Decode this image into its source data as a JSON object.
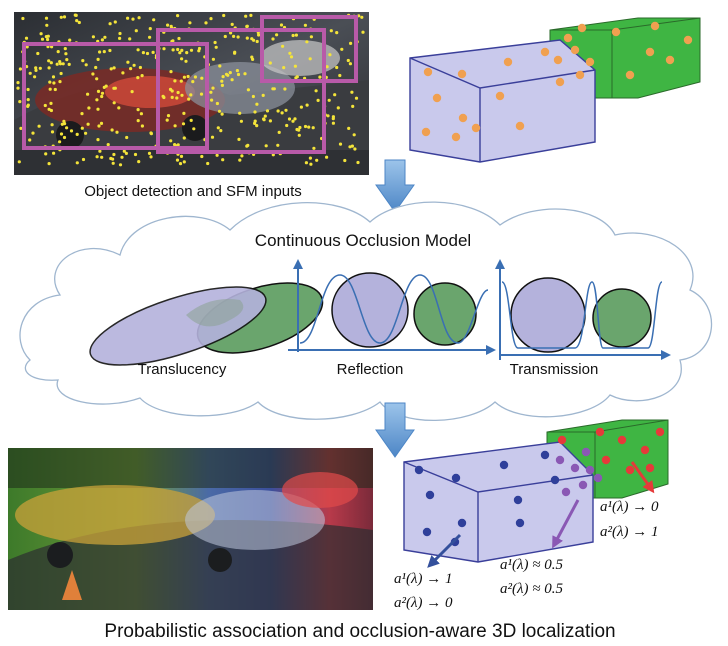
{
  "captions": {
    "top_left": "Object detection and SFM inputs",
    "model_title": "Continuous Occlusion Model",
    "translucency": "Translucency",
    "reflection": "Reflection",
    "transmission": "Transmission",
    "bottom": "Probabilistic association and occlusion-aware 3D localization"
  },
  "equations": {
    "red": [
      "a¹(λ) → 0",
      "a²(λ) → 1"
    ],
    "purple": [
      "a¹(λ) ≈ 0.5",
      "a²(λ) ≈ 0.5"
    ],
    "blue": [
      "a¹(λ) → 1",
      "a²(λ) → 0"
    ]
  },
  "colors": {
    "box_blue_fill": "#c9c9ec",
    "box_green_fill": "#3fb543",
    "ellipse_blue": "#b4b2dc",
    "ellipse_green": "#6aa56d",
    "curve_blue": "#3a6fb3",
    "arrow_blue": "#5b92cc",
    "point_orange": "#f0a050",
    "point_blue": "#2f3f9a",
    "point_purple": "#8a58b4",
    "point_red": "#e53a3a",
    "bbox_magenta": "#b85aa8",
    "feature_yellow": "#f4e43a"
  },
  "icons": [
    "down-arrow-icon",
    "cloud-icon"
  ]
}
